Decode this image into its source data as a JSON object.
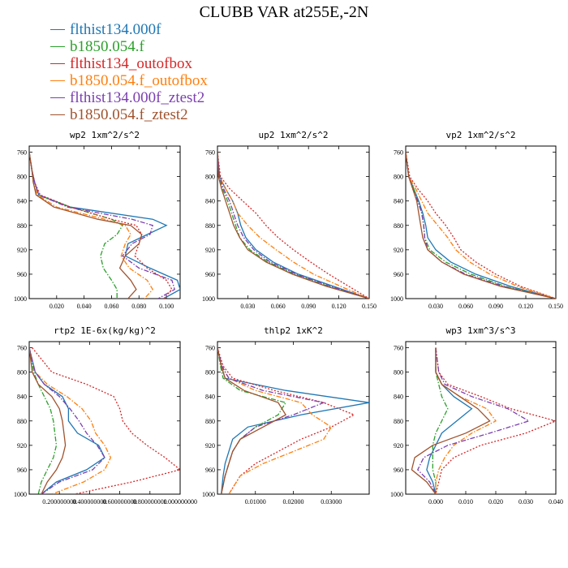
{
  "title": "CLUBB VAR at255E,-2N",
  "legend": [
    {
      "name": "flthist134.000f",
      "color": "#1f77b4",
      "dash": ""
    },
    {
      "name": "b1850.054.f",
      "color": "#2ca02c",
      "dash": "6,2,1.5,2"
    },
    {
      "name": "flthist134_outofbox",
      "color": "#d62728",
      "dash": "2,2"
    },
    {
      "name": "b1850.054.f_outofbox",
      "color": "#ff7f0e",
      "dash": "6,2,1.5,2"
    },
    {
      "name": "flthist134.000f_ztest2",
      "color": "#7b3fb0",
      "dash": "6,2,1.5,2"
    },
    {
      "name": "b1850.054.f_ztest2",
      "color": "#a0522d",
      "dash": ""
    }
  ],
  "chart_data": [
    {
      "type": "line",
      "title": "wp2   1xm^2/s^2",
      "xlim": [
        0,
        0.11
      ],
      "ylim": [
        1000,
        750
      ],
      "xticks": [
        0.02,
        0.04,
        0.06,
        0.08,
        0.1
      ],
      "xtick_labels": [
        "0.020",
        "0.040",
        "0.060",
        "0.080",
        "0.100"
      ],
      "yticks": [
        760,
        800,
        840,
        880,
        920,
        960,
        1000
      ],
      "ytick_labels": [
        "760",
        "800",
        "840",
        "880",
        "920",
        "960",
        "1000"
      ],
      "levels": [
        760,
        790,
        810,
        830,
        850,
        870,
        880,
        895,
        910,
        930,
        950,
        970,
        985,
        1000
      ],
      "series": [
        {
          "values": [
            0.0,
            0.002,
            0.004,
            0.007,
            0.03,
            0.09,
            0.1,
            0.086,
            0.072,
            0.07,
            0.088,
            0.108,
            0.11,
            0.098
          ]
        },
        {
          "values": [
            0.0,
            0.002,
            0.003,
            0.006,
            0.03,
            0.06,
            0.068,
            0.064,
            0.055,
            0.052,
            0.054,
            0.06,
            0.064,
            0.064
          ]
        },
        {
          "values": [
            0.0,
            0.002,
            0.004,
            0.008,
            0.03,
            0.06,
            0.078,
            0.082,
            0.08,
            0.077,
            0.086,
            0.1,
            0.104,
            0.098
          ]
        },
        {
          "values": [
            0.0,
            0.002,
            0.003,
            0.006,
            0.02,
            0.055,
            0.07,
            0.074,
            0.07,
            0.067,
            0.073,
            0.086,
            0.09,
            0.084
          ]
        },
        {
          "values": [
            0.0,
            0.002,
            0.004,
            0.007,
            0.028,
            0.075,
            0.09,
            0.088,
            0.075,
            0.068,
            0.08,
            0.104,
            0.106,
            0.094
          ]
        },
        {
          "values": [
            0.0,
            0.002,
            0.003,
            0.005,
            0.018,
            0.05,
            0.074,
            0.082,
            0.08,
            0.07,
            0.066,
            0.074,
            0.078,
            0.072
          ]
        }
      ]
    },
    {
      "type": "line",
      "title": "up2   1xm^2/s^2",
      "xlim": [
        0,
        0.15
      ],
      "ylim": [
        1000,
        750
      ],
      "xticks": [
        0.03,
        0.06,
        0.09,
        0.12,
        0.15
      ],
      "xtick_labels": [
        "0.030",
        "0.060",
        "0.090",
        "0.120",
        "0.150"
      ],
      "yticks": [
        760,
        800,
        840,
        880,
        920,
        960,
        1000
      ],
      "ytick_labels": [
        "760",
        "800",
        "840",
        "880",
        "920",
        "960",
        "1000"
      ],
      "levels": [
        760,
        800,
        820,
        840,
        860,
        880,
        900,
        920,
        940,
        960,
        980,
        1000
      ],
      "series": [
        {
          "values": [
            0.0,
            0.002,
            0.008,
            0.015,
            0.02,
            0.023,
            0.028,
            0.038,
            0.055,
            0.08,
            0.115,
            0.15
          ]
        },
        {
          "values": [
            0.0,
            0.002,
            0.005,
            0.01,
            0.014,
            0.018,
            0.022,
            0.032,
            0.05,
            0.076,
            0.11,
            0.15
          ]
        },
        {
          "values": [
            0.0,
            0.003,
            0.012,
            0.025,
            0.038,
            0.048,
            0.06,
            0.075,
            0.092,
            0.11,
            0.13,
            0.15
          ]
        },
        {
          "values": [
            0.0,
            0.002,
            0.008,
            0.015,
            0.02,
            0.03,
            0.042,
            0.058,
            0.075,
            0.095,
            0.122,
            0.15
          ]
        },
        {
          "values": [
            0.0,
            0.002,
            0.006,
            0.012,
            0.016,
            0.02,
            0.026,
            0.036,
            0.052,
            0.078,
            0.112,
            0.15
          ]
        },
        {
          "values": [
            0.0,
            0.001,
            0.004,
            0.008,
            0.012,
            0.016,
            0.022,
            0.03,
            0.048,
            0.074,
            0.108,
            0.15
          ]
        }
      ]
    },
    {
      "type": "line",
      "title": "vp2   1xm^2/s^2",
      "xlim": [
        0,
        0.15
      ],
      "ylim": [
        1000,
        750
      ],
      "xticks": [
        0.03,
        0.06,
        0.09,
        0.12,
        0.15
      ],
      "xtick_labels": [
        "0.030",
        "0.060",
        "0.090",
        "0.120",
        "0.150"
      ],
      "yticks": [
        760,
        800,
        840,
        880,
        920,
        960,
        1000
      ],
      "ytick_labels": [
        "760",
        "800",
        "840",
        "880",
        "920",
        "960",
        "1000"
      ],
      "levels": [
        760,
        800,
        820,
        840,
        860,
        880,
        900,
        920,
        940,
        960,
        980,
        1000
      ],
      "series": [
        {
          "values": [
            0.0,
            0.003,
            0.008,
            0.013,
            0.017,
            0.02,
            0.022,
            0.03,
            0.045,
            0.07,
            0.105,
            0.15
          ]
        },
        {
          "values": [
            0.0,
            0.003,
            0.008,
            0.012,
            0.016,
            0.018,
            0.019,
            0.024,
            0.04,
            0.065,
            0.1,
            0.15
          ]
        },
        {
          "values": [
            0.0,
            0.004,
            0.012,
            0.022,
            0.03,
            0.04,
            0.048,
            0.055,
            0.07,
            0.09,
            0.115,
            0.15
          ]
        },
        {
          "values": [
            0.0,
            0.003,
            0.01,
            0.016,
            0.022,
            0.032,
            0.042,
            0.05,
            0.064,
            0.084,
            0.112,
            0.15
          ]
        },
        {
          "values": [
            0.0,
            0.003,
            0.007,
            0.012,
            0.016,
            0.018,
            0.019,
            0.022,
            0.036,
            0.06,
            0.098,
            0.15
          ]
        },
        {
          "values": [
            0.0,
            0.003,
            0.007,
            0.011,
            0.013,
            0.015,
            0.017,
            0.022,
            0.036,
            0.058,
            0.095,
            0.15
          ]
        }
      ]
    },
    {
      "type": "line",
      "title": "rtp2   1E-6x(kg/kg)^2",
      "xlim": [
        0,
        1.0
      ],
      "ylim": [
        1000,
        750
      ],
      "xticks": [
        0.2,
        0.4,
        0.6,
        0.8,
        1.0
      ],
      "xtick_labels": [
        "0.200000000",
        "0.400000000",
        "0.600000000",
        "0.800000000",
        "1.000000000"
      ],
      "yticks": [
        760,
        800,
        840,
        880,
        920,
        960,
        1000
      ],
      "ytick_labels": [
        "760",
        "800",
        "840",
        "880",
        "920",
        "960",
        "1000"
      ],
      "levels": [
        760,
        800,
        820,
        840,
        860,
        880,
        900,
        920,
        940,
        960,
        980,
        1000
      ],
      "series": [
        {
          "values": [
            0.0,
            0.04,
            0.1,
            0.22,
            0.26,
            0.26,
            0.32,
            0.46,
            0.5,
            0.38,
            0.18,
            0.08
          ]
        },
        {
          "values": [
            0.0,
            0.03,
            0.06,
            0.1,
            0.14,
            0.16,
            0.17,
            0.18,
            0.16,
            0.12,
            0.08,
            0.06
          ]
        },
        {
          "values": [
            0.02,
            0.15,
            0.38,
            0.56,
            0.6,
            0.62,
            0.68,
            0.78,
            0.9,
            1.0,
            0.68,
            0.3
          ]
        },
        {
          "values": [
            0.0,
            0.04,
            0.12,
            0.25,
            0.35,
            0.41,
            0.44,
            0.5,
            0.54,
            0.5,
            0.36,
            0.15
          ]
        },
        {
          "values": [
            0.0,
            0.04,
            0.1,
            0.2,
            0.27,
            0.33,
            0.38,
            0.45,
            0.5,
            0.42,
            0.2,
            0.08
          ]
        },
        {
          "values": [
            0.0,
            0.02,
            0.06,
            0.15,
            0.2,
            0.22,
            0.23,
            0.24,
            0.22,
            0.18,
            0.12,
            0.08
          ]
        }
      ]
    },
    {
      "type": "line",
      "title": "thlp2   1xK^2",
      "xlim": [
        0,
        0.04
      ],
      "ylim": [
        1000,
        750
      ],
      "xticks": [
        0.01,
        0.02,
        0.03
      ],
      "xtick_labels": [
        "0.01000",
        "0.02000",
        "0.03000"
      ],
      "yticks": [
        760,
        800,
        840,
        880,
        920,
        960,
        1000
      ],
      "ytick_labels": [
        "760",
        "800",
        "840",
        "880",
        "920",
        "960",
        "1000"
      ],
      "levels": [
        760,
        790,
        810,
        830,
        850,
        870,
        890,
        910,
        930,
        950,
        970,
        1000
      ],
      "series": [
        {
          "values": [
            0.0,
            0.001,
            0.002,
            0.018,
            0.04,
            0.022,
            0.008,
            0.004,
            0.003,
            0.002,
            0.0015,
            0.001
          ]
        },
        {
          "values": [
            0.0,
            0.0008,
            0.0015,
            0.006,
            0.018,
            0.016,
            0.01,
            0.006,
            0.004,
            0.003,
            0.002,
            0.001
          ]
        },
        {
          "values": [
            0.0,
            0.0015,
            0.004,
            0.015,
            0.028,
            0.036,
            0.03,
            0.022,
            0.016,
            0.01,
            0.006,
            0.003
          ]
        },
        {
          "values": [
            0.0,
            0.001,
            0.003,
            0.01,
            0.022,
            0.025,
            0.03,
            0.028,
            0.02,
            0.012,
            0.006,
            0.003
          ]
        },
        {
          "values": [
            0.0,
            0.0012,
            0.003,
            0.012,
            0.028,
            0.02,
            0.01,
            0.006,
            0.004,
            0.003,
            0.002,
            0.001
          ]
        },
        {
          "values": [
            0.0,
            0.001,
            0.002,
            0.007,
            0.016,
            0.018,
            0.012,
            0.006,
            0.004,
            0.003,
            0.002,
            0.001
          ]
        }
      ]
    },
    {
      "type": "line",
      "title": "wp3   1xm^3/s^3",
      "xlim": [
        -0.01,
        0.04
      ],
      "ylim": [
        1000,
        750
      ],
      "xticks": [
        0.0,
        0.01,
        0.02,
        0.03,
        0.04
      ],
      "xtick_labels": [
        "0.000",
        "0.010",
        "0.020",
        "0.030",
        "0.040"
      ],
      "yticks": [
        760,
        800,
        840,
        880,
        920,
        960,
        1000
      ],
      "ytick_labels": [
        "760",
        "800",
        "840",
        "880",
        "920",
        "960",
        "1000"
      ],
      "levels": [
        760,
        800,
        820,
        840,
        860,
        880,
        900,
        920,
        940,
        960,
        980,
        1000
      ],
      "series": [
        {
          "values": [
            0.0,
            0.0,
            0.002,
            0.006,
            0.012,
            0.007,
            0.002,
            0.0,
            -0.002,
            -0.003,
            -0.001,
            0.0
          ]
        },
        {
          "values": [
            0.0,
            0.0,
            0.001,
            0.002,
            0.004,
            0.002,
            0.0,
            -0.001,
            -0.001,
            -0.001,
            0.0,
            0.0
          ]
        },
        {
          "values": [
            0.0,
            0.001,
            0.004,
            0.015,
            0.025,
            0.04,
            0.03,
            0.015,
            0.006,
            0.002,
            0.001,
            0.0
          ]
        },
        {
          "values": [
            0.0,
            0.0,
            0.002,
            0.008,
            0.017,
            0.02,
            0.012,
            0.006,
            0.003,
            0.001,
            0.0,
            0.0
          ]
        },
        {
          "values": [
            0.0,
            0.001,
            0.003,
            0.012,
            0.024,
            0.031,
            0.018,
            0.004,
            -0.004,
            -0.006,
            -0.002,
            0.0
          ]
        },
        {
          "values": [
            0.0,
            0.0,
            0.002,
            0.008,
            0.014,
            0.018,
            0.01,
            -0.001,
            -0.007,
            -0.008,
            -0.003,
            0.0
          ]
        }
      ]
    }
  ]
}
